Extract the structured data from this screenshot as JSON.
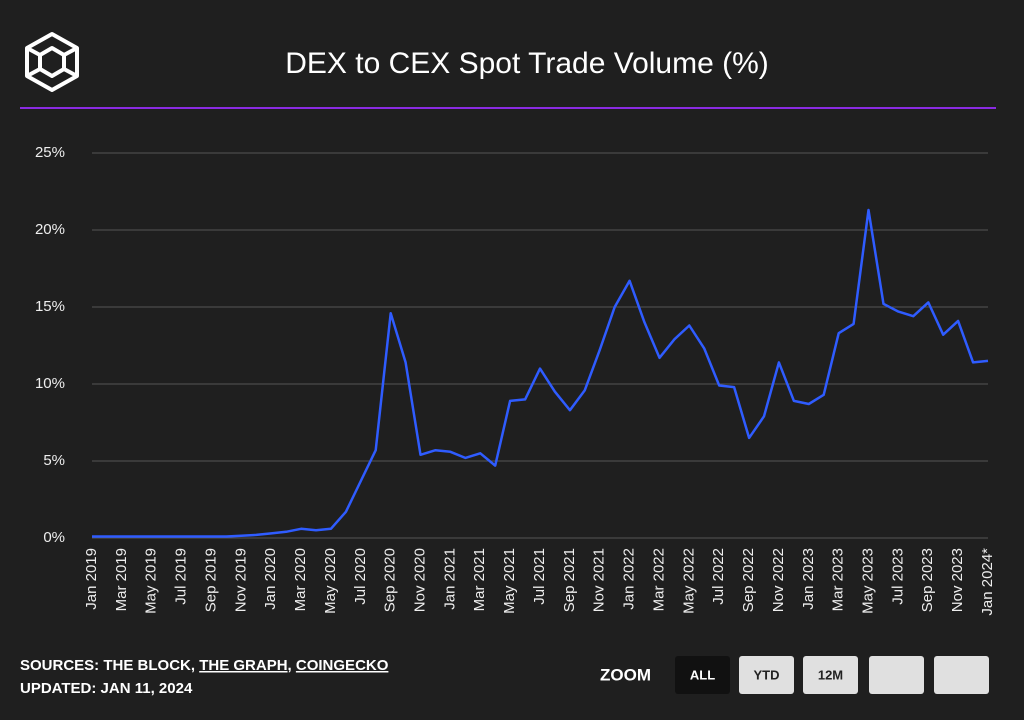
{
  "chart_data": {
    "type": "line",
    "title": "DEX to CEX Spot Trade Volume (%)",
    "categories": [
      "Jan 2019",
      null,
      "Mar 2019",
      null,
      "May 2019",
      null,
      "Jul 2019",
      null,
      "Sep 2019",
      null,
      "Nov 2019",
      null,
      "Jan 2020",
      null,
      "Mar 2020",
      null,
      "May 2020",
      null,
      "Jul 2020",
      null,
      "Sep 2020",
      null,
      "Nov 2020",
      null,
      "Jan 2021",
      null,
      "Mar 2021",
      null,
      "May 2021",
      null,
      "Jul 2021",
      null,
      "Sep 2021",
      null,
      "Nov 2021",
      null,
      "Jan 2022",
      null,
      "Mar 2022",
      null,
      "May 2022",
      null,
      "Jul 2022",
      null,
      "Sep 2022",
      null,
      "Nov 2022",
      null,
      "Jan 2023",
      null,
      "Mar 2023",
      null,
      "May 2023",
      null,
      "Jul 2023",
      null,
      "Sep 2023",
      null,
      "Nov 2023",
      null,
      "Jan 2024*"
    ],
    "series": [
      {
        "name": "DEX to CEX",
        "color": "#2f5cff",
        "values": [
          0.1,
          0.1,
          0.1,
          0.1,
          0.1,
          0.1,
          0.1,
          0.1,
          0.1,
          0.1,
          0.15,
          0.2,
          0.3,
          0.4,
          0.6,
          0.5,
          0.6,
          1.7,
          3.7,
          5.7,
          14.6,
          11.4,
          5.4,
          5.7,
          5.6,
          5.2,
          5.5,
          4.7,
          8.9,
          9.0,
          11.0,
          9.5,
          8.3,
          9.6,
          12.2,
          15.0,
          16.7,
          14.0,
          11.7,
          12.9,
          13.8,
          12.3,
          9.9,
          9.8,
          6.5,
          7.9,
          11.4,
          8.9,
          8.7,
          9.3,
          13.3,
          13.9,
          21.3,
          15.2,
          14.7,
          14.4,
          15.3,
          13.2,
          14.1,
          11.4,
          11.5
        ]
      }
    ],
    "ylim": [
      0,
      25
    ],
    "yticks": [
      {
        "value": 0,
        "label": "0%"
      },
      {
        "value": 5,
        "label": "5%"
      },
      {
        "value": 10,
        "label": "10%"
      },
      {
        "value": 15,
        "label": "15%"
      },
      {
        "value": 20,
        "label": "20%"
      },
      {
        "value": 25,
        "label": "25%"
      }
    ],
    "grid": true
  },
  "footer": {
    "sources_label": "SOURCES:",
    "sources": [
      {
        "text": "THE BLOCK",
        "link": false
      },
      {
        "text": "THE GRAPH",
        "link": true
      },
      {
        "text": "COINGECKO",
        "link": true
      }
    ],
    "separator": ",",
    "updated": "UPDATED: JAN 11, 2024"
  },
  "zoom": {
    "label": "ZOOM",
    "buttons": [
      "ALL",
      "YTD",
      "12M"
    ],
    "active": 0
  }
}
